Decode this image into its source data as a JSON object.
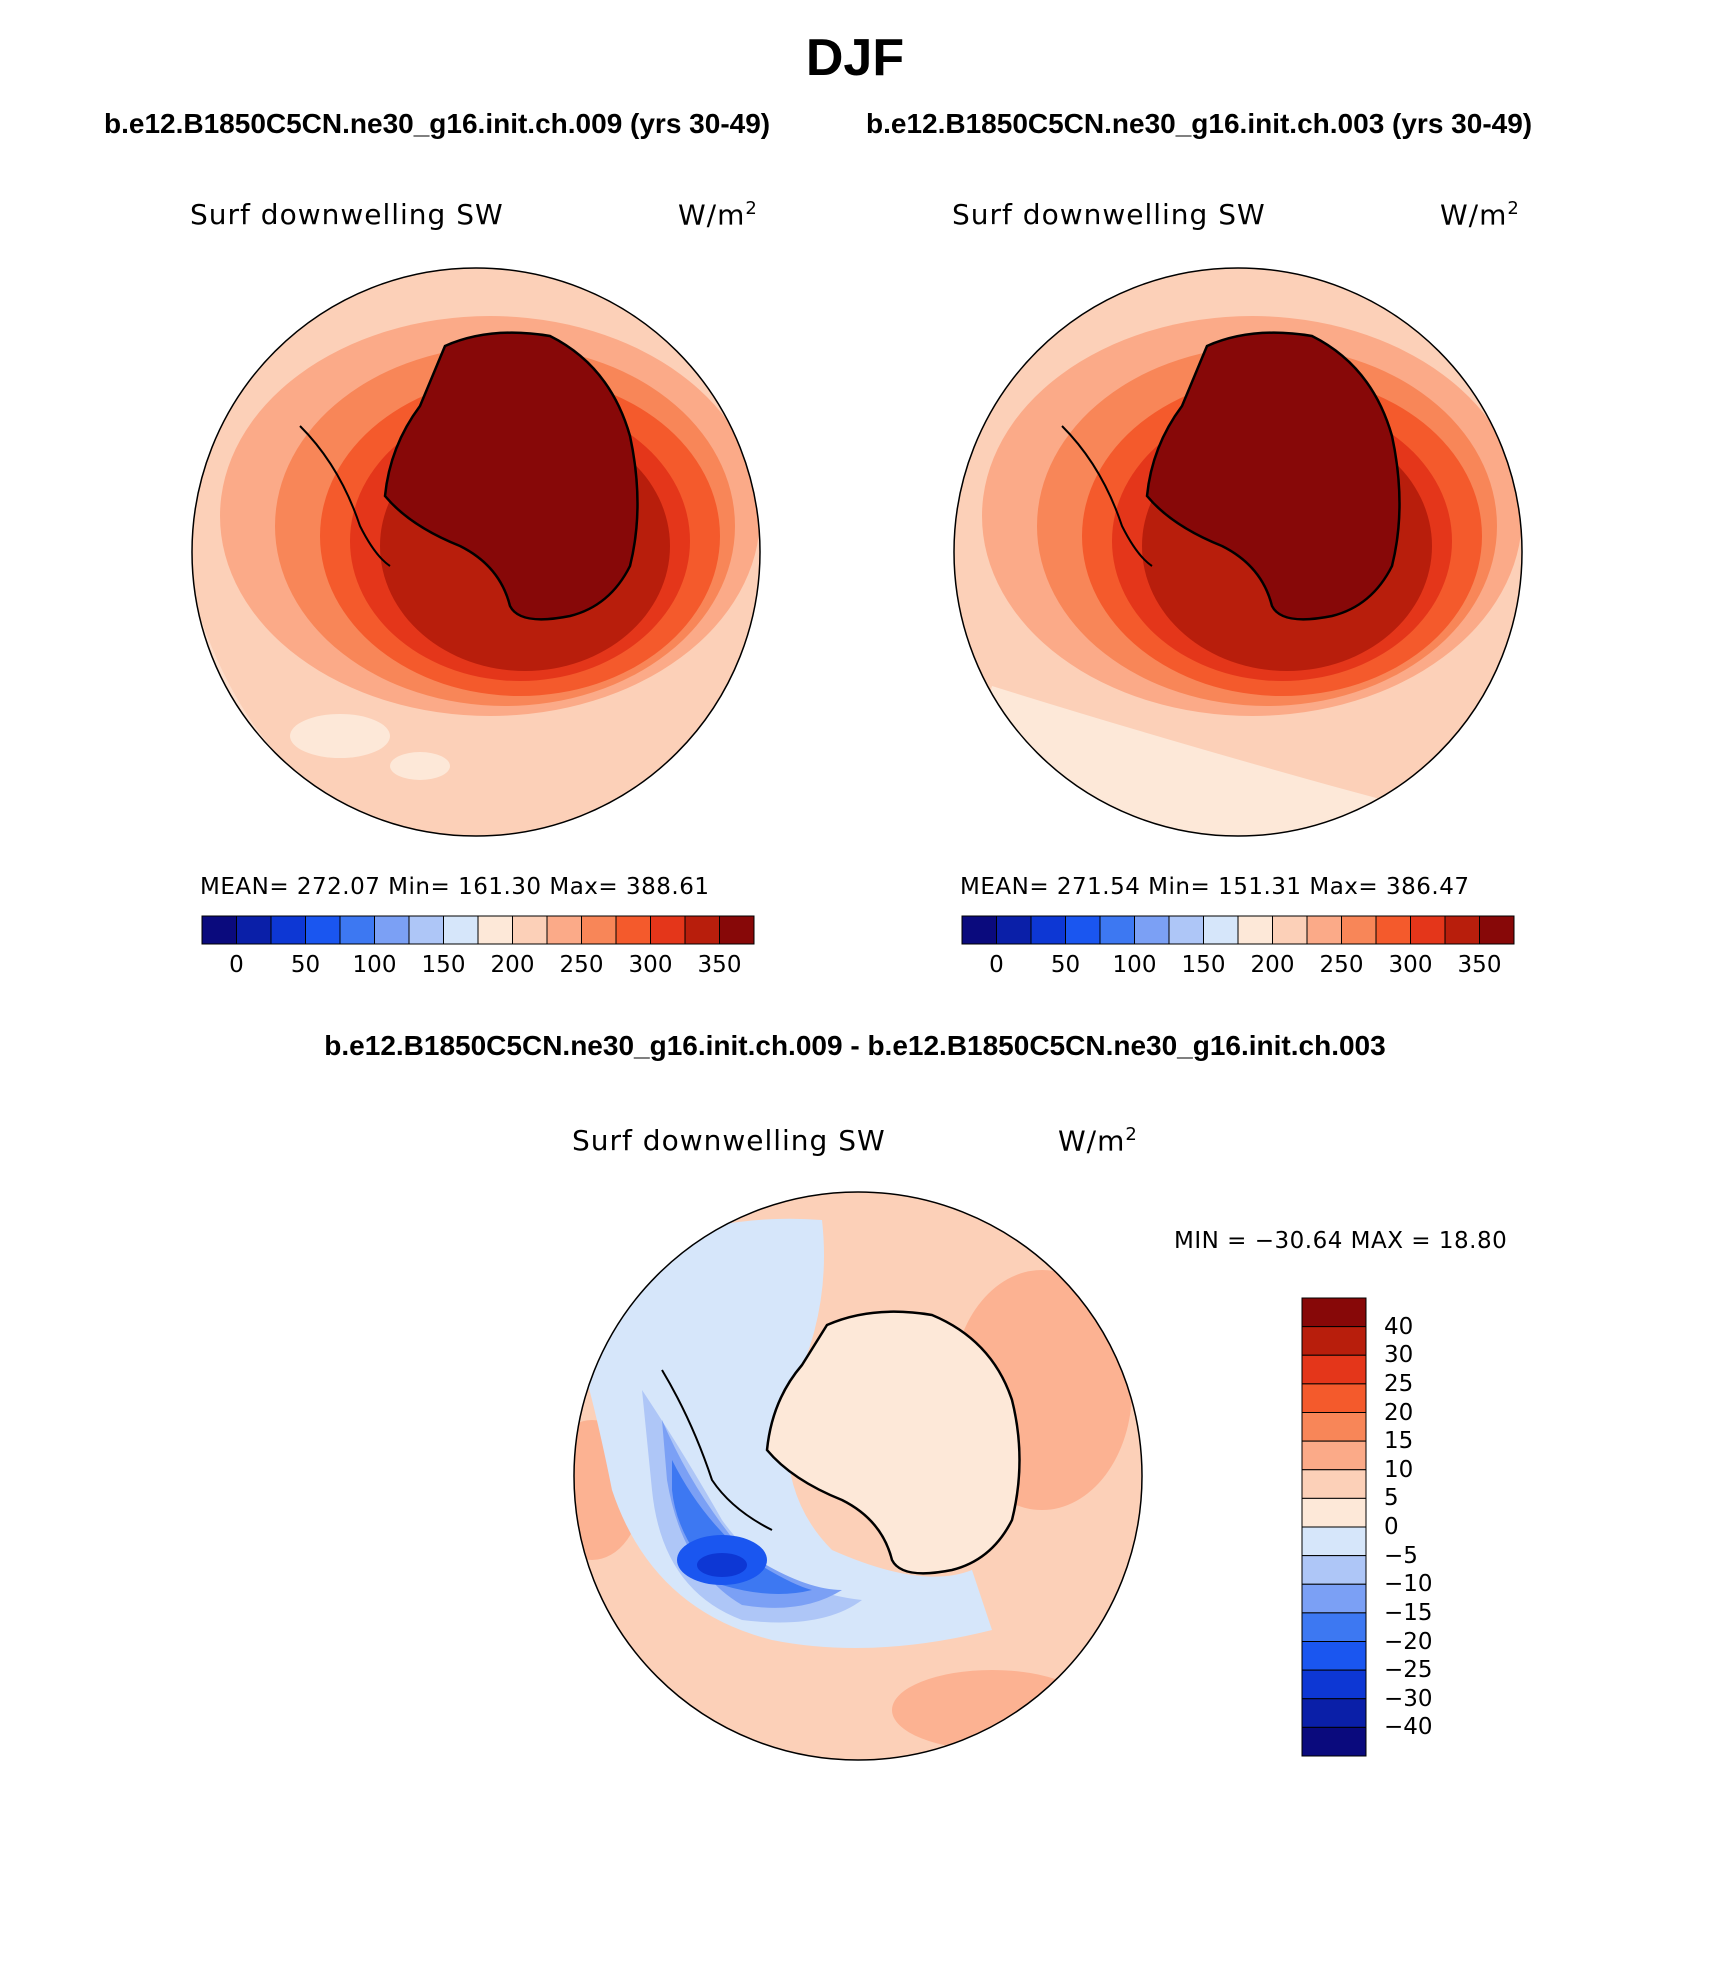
{
  "figure": {
    "season_title": "DJF",
    "case1_title": "b.e12.B1850C5CN.ne30_g16.init.ch.009 (yrs 30-49)",
    "case2_title": "b.e12.B1850C5CN.ne30_g16.init.ch.003 (yrs 30-49)",
    "diff_title": "b.e12.B1850C5CN.ne30_g16.init.ch.009 - b.e12.B1850C5CN.ne30_g16.init.ch.003"
  },
  "panels": [
    {
      "variable_label": "Surf downwelling SW",
      "units_label": "W/m",
      "units_sup": "2",
      "stats": "MEAN= 272.07   Min= 161.30   Max= 388.61"
    },
    {
      "variable_label": "Surf downwelling SW",
      "units_label": "W/m",
      "units_sup": "2",
      "stats": "MEAN= 271.54   Min= 151.31   Max= 386.47"
    }
  ],
  "diff_panel": {
    "variable_label": "Surf downwelling SW",
    "units_label": "W/m",
    "units_sup": "2",
    "minmax": "MIN = −30.64  MAX =   18.80"
  },
  "abs_colorbar": {
    "colors": [
      "#0a0a7d",
      "#0a1fa8",
      "#0d37d4",
      "#1a56f0",
      "#3d78f2",
      "#7ba0f5",
      "#aec6f7",
      "#d6e6fa",
      "#fde8d8",
      "#fcd0b8",
      "#fbaa88",
      "#f88658",
      "#f45a2c",
      "#e4361a",
      "#b81e0c",
      "#870808"
    ],
    "tick_labels": [
      "0",
      "50",
      "100",
      "150",
      "200",
      "250",
      "300",
      "350"
    ]
  },
  "diff_colorbar": {
    "colors": [
      "#870808",
      "#b81e0c",
      "#e4361a",
      "#f45a2c",
      "#f88658",
      "#fbaa88",
      "#fcd0b8",
      "#fde8d8",
      "#d6e6fa",
      "#aec6f7",
      "#7ba0f5",
      "#3d78f2",
      "#1a56f0",
      "#0d37d4",
      "#0a1fa8",
      "#0a0a7d"
    ],
    "tick_labels": [
      "40",
      "30",
      "25",
      "20",
      "15",
      "10",
      "5",
      "0",
      "−5",
      "−10",
      "−15",
      "−20",
      "−25",
      "−30",
      "−40"
    ]
  }
}
